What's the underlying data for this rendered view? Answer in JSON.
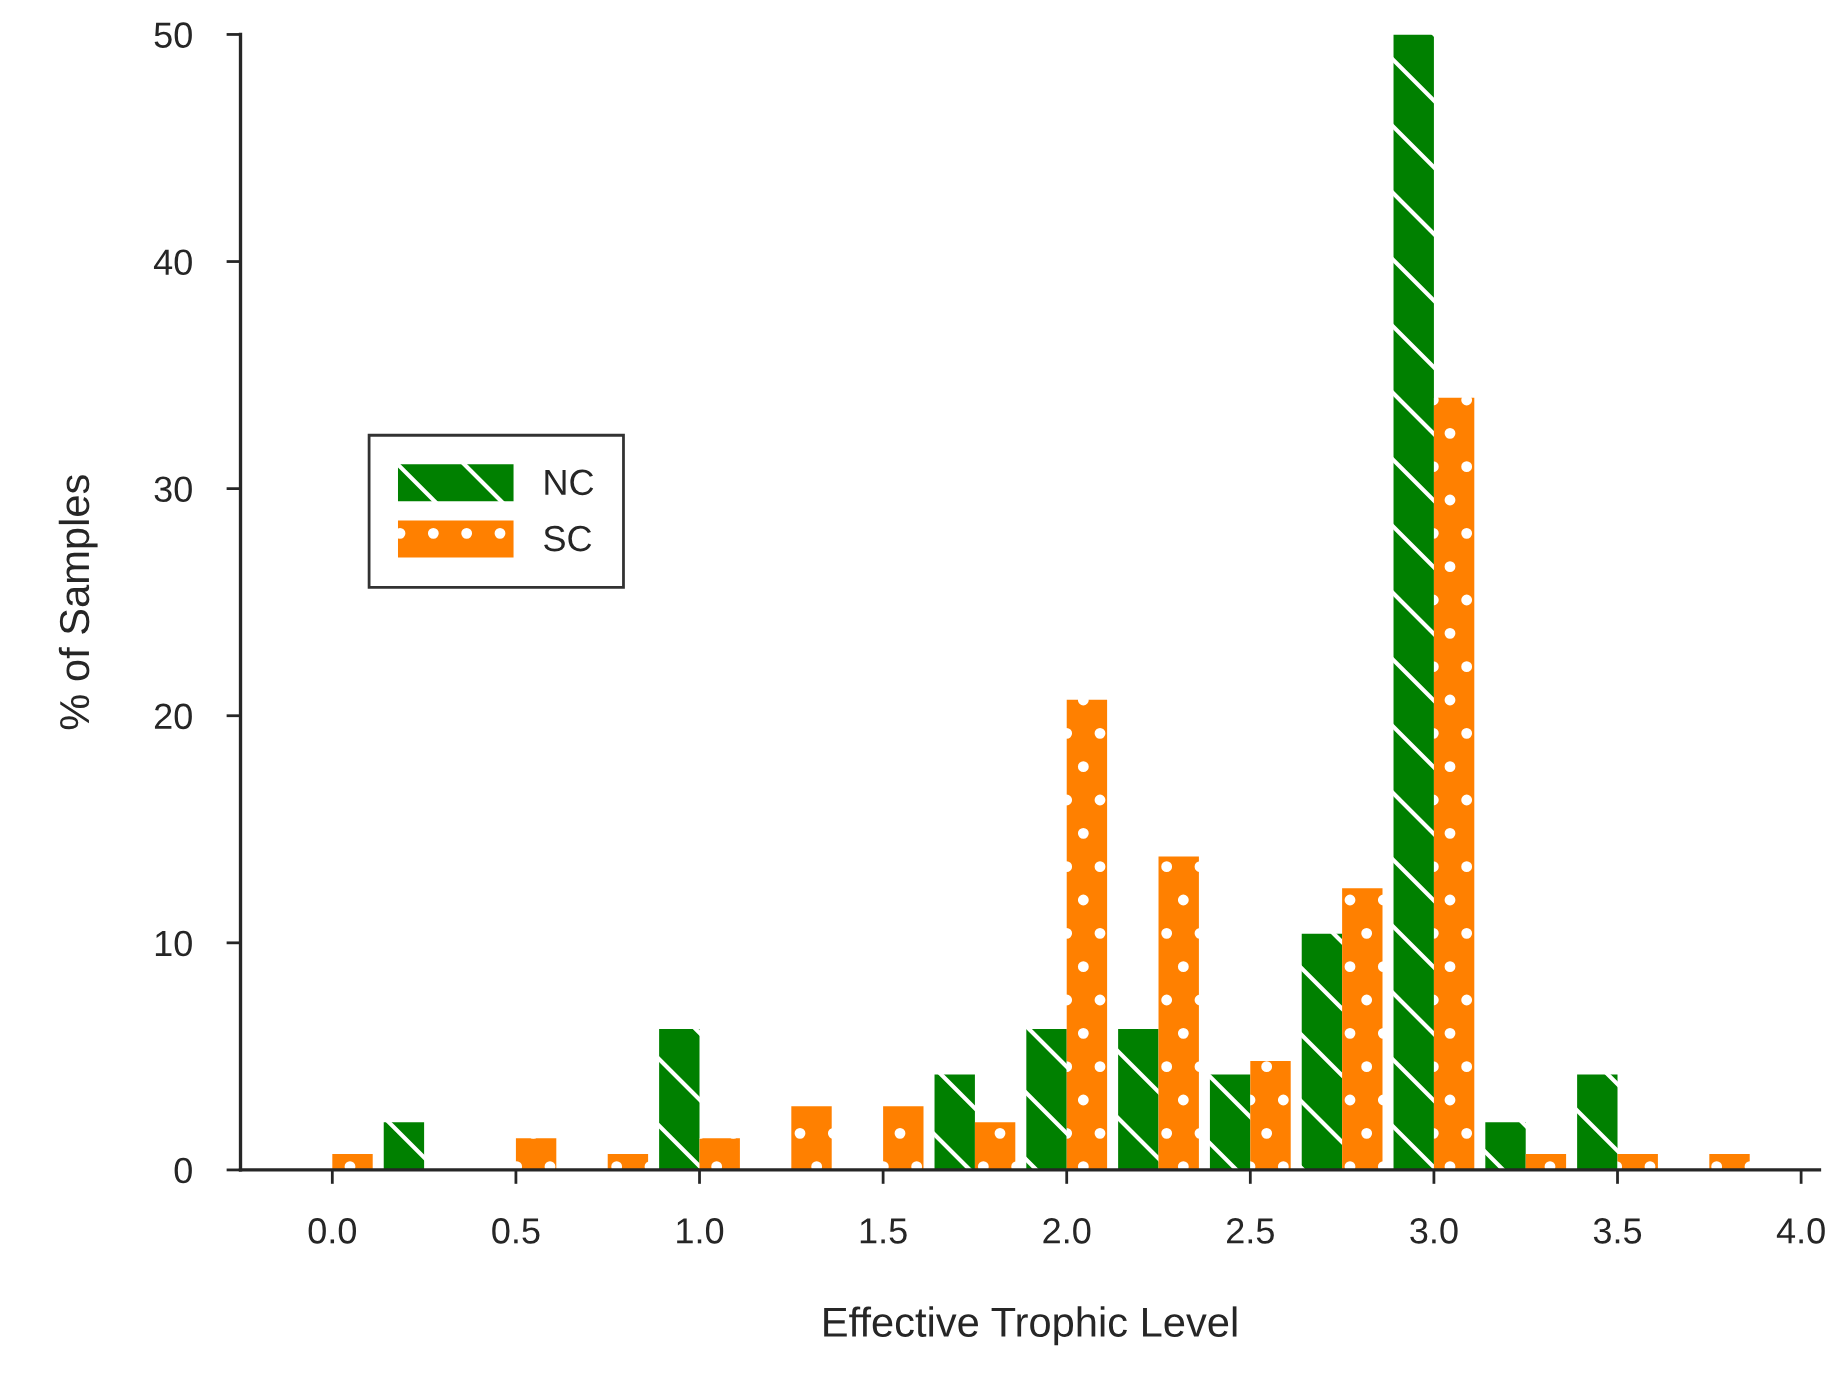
{
  "chart_data": {
    "type": "bar",
    "xlabel": "Effective Trophic Level",
    "ylabel": "% of Samples",
    "xlim": [
      -0.25,
      4.05
    ],
    "xticks": [
      {
        "value": 0,
        "label": "0.0"
      },
      0.5,
      {
        "value": 1,
        "label": "1.0"
      },
      1.5,
      {
        "value": 2,
        "label": "2.0"
      },
      2.5,
      {
        "value": 3,
        "label": "3.0"
      },
      3.5,
      {
        "value": 4,
        "label": "4.0"
      }
    ],
    "ylim": [
      0,
      50
    ],
    "yticks": [
      0,
      10,
      20,
      30,
      40,
      50
    ],
    "grid": false,
    "legend": "left",
    "series": [
      {
        "name": "NC",
        "color": "#008000",
        "x": [
          0.195,
          0.945,
          1.695,
          1.945,
          2.195,
          2.445,
          2.695,
          2.945,
          3.195,
          3.445
        ],
        "values": [
          2.1,
          6.2,
          4.2,
          6.2,
          6.2,
          4.2,
          10.4,
          50,
          2.1,
          4.2
        ]
      },
      {
        "name": "SC",
        "color": "#ff8000",
        "x": [
          0.055,
          0.555,
          0.805,
          1.055,
          1.305,
          1.555,
          1.805,
          2.055,
          2.305,
          2.555,
          2.805,
          3.055,
          3.305,
          3.555,
          3.805
        ],
        "values": [
          0.7,
          1.4,
          0.7,
          1.4,
          2.8,
          2.8,
          2.1,
          20.7,
          13.8,
          4.8,
          12.4,
          34.0,
          0.7,
          0.7,
          0.7
        ]
      }
    ]
  }
}
